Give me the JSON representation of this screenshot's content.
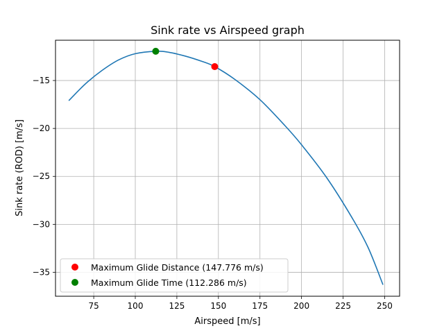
{
  "chart_data": {
    "type": "line",
    "title": "Sink rate vs Airspeed graph",
    "xlabel": "Airspeed [m/s]",
    "ylabel": "Sink rate (ROD) [m/s]",
    "xlim": [
      52,
      259
    ],
    "ylim": [
      -37.5,
      -10.8
    ],
    "xticks": [
      75,
      100,
      125,
      150,
      175,
      200,
      225,
      250
    ],
    "yticks": [
      -15,
      -20,
      -25,
      -30,
      -35
    ],
    "grid": true,
    "legend_position": "lower-left",
    "series": [
      {
        "type": "line",
        "color": "#1f77b4",
        "x": [
          60,
          70,
          80,
          90,
          100,
          112.286,
          120,
          130,
          140,
          147.776,
          160,
          175,
          190,
          200,
          215,
          230,
          240,
          249
        ],
        "y": [
          -17.1,
          -15.35,
          -13.95,
          -12.85,
          -12.2,
          -11.95,
          -12.05,
          -12.45,
          -13.0,
          -13.55,
          -14.9,
          -17.0,
          -19.7,
          -21.7,
          -25.1,
          -29.2,
          -32.4,
          -36.3
        ]
      },
      {
        "type": "point",
        "name": "Maximum Glide Distance (147.776 m/s)",
        "color": "#ff0000",
        "x": 147.776,
        "y": -13.55
      },
      {
        "type": "point",
        "name": "Maximum Glide Time (112.286 m/s)",
        "color": "#008000",
        "x": 112.286,
        "y": -11.95
      }
    ]
  }
}
